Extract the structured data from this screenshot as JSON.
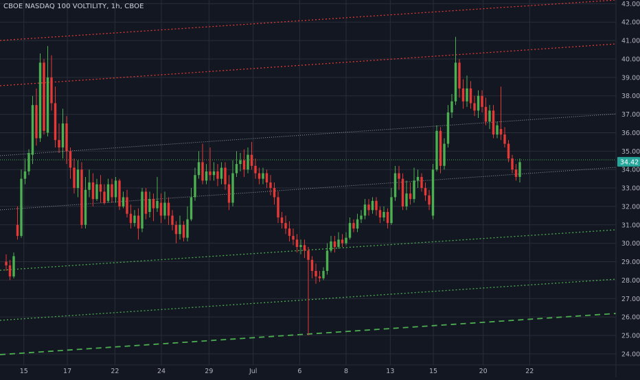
{
  "chart_data": {
    "type": "candlestick",
    "title": "CBOE NASDAQ 100 VOLTILITY, 1h, CBOE",
    "ylim": [
      23.4,
      43.2
    ],
    "y_ticks": [
      "43.00",
      "42.00",
      "41.00",
      "40.00",
      "39.00",
      "38.00",
      "37.00",
      "36.00",
      "35.00",
      "34.00",
      "33.00",
      "32.00",
      "31.00",
      "30.00",
      "29.00",
      "28.00",
      "27.00",
      "26.00",
      "25.00",
      "24.00"
    ],
    "x_ticks": [
      "15",
      "17",
      "22",
      "24",
      "29",
      "Jul",
      "6",
      "8",
      "13",
      "15",
      "20",
      "22"
    ],
    "x_tick_positions": [
      0.78,
      2.7,
      4.8,
      6.85,
      8.95,
      10.9,
      12.95,
      15.0,
      16.95,
      18.85,
      21.05,
      23.1
    ],
    "grid": true,
    "last_price": {
      "label": "34.42",
      "value": 34.42,
      "color": "#26a69a"
    },
    "colors": {
      "up": "#4caf50",
      "down": "#e53935",
      "background": "#131722",
      "grid": "#2a2e39",
      "axis_text": "#b2b5be"
    },
    "candles": [
      [
        29.0,
        28.8,
        29.4,
        28.5
      ],
      [
        28.8,
        28.2,
        29.1,
        28.0
      ],
      [
        28.2,
        29.3,
        29.5,
        28.1
      ],
      [
        31.0,
        30.4,
        32.0,
        30.2
      ],
      [
        30.4,
        33.5,
        34.0,
        30.3
      ],
      [
        33.5,
        33.9,
        34.6,
        33.2
      ],
      [
        33.9,
        34.9,
        35.1,
        33.7
      ],
      [
        34.8,
        37.5,
        38.0,
        34.3
      ],
      [
        37.5,
        35.7,
        38.4,
        35.3
      ],
      [
        35.7,
        39.8,
        40.3,
        35.5
      ],
      [
        39.8,
        36.1,
        40.0,
        35.9
      ],
      [
        36.0,
        39.0,
        40.7,
        35.8
      ],
      [
        39.0,
        37.6,
        40.2,
        37.2
      ],
      [
        37.6,
        35.6,
        38.5,
        35.2
      ],
      [
        35.6,
        35.2,
        36.5,
        34.9
      ],
      [
        35.2,
        36.5,
        37.3,
        34.6
      ],
      [
        36.5,
        35.0,
        36.9,
        34.3
      ],
      [
        35.0,
        34.1,
        35.2,
        33.5
      ],
      [
        34.1,
        33.0,
        34.6,
        32.7
      ],
      [
        33.0,
        34.0,
        34.5,
        32.5
      ],
      [
        34.0,
        31.0,
        34.4,
        30.8
      ],
      [
        31.0,
        32.9,
        33.6,
        30.8
      ],
      [
        32.9,
        33.3,
        34.0,
        32.5
      ],
      [
        33.3,
        32.4,
        33.8,
        32.0
      ],
      [
        32.4,
        33.2,
        33.5,
        32.3
      ],
      [
        33.2,
        32.8,
        33.7,
        32.2
      ],
      [
        32.8,
        32.2,
        33.2,
        32.1
      ],
      [
        32.3,
        33.2,
        33.5,
        32.2
      ],
      [
        33.2,
        32.5,
        33.5,
        32.2
      ],
      [
        32.5,
        33.4,
        33.6,
        32.2
      ],
      [
        33.4,
        32.0,
        33.5,
        31.8
      ],
      [
        32.0,
        32.5,
        32.8,
        31.9
      ],
      [
        32.5,
        31.6,
        32.9,
        31.4
      ],
      [
        31.6,
        31.1,
        32.1,
        30.8
      ],
      [
        31.1,
        31.5,
        31.8,
        30.9
      ],
      [
        31.5,
        30.8,
        31.9,
        30.2
      ],
      [
        30.8,
        32.8,
        33.0,
        30.6
      ],
      [
        32.8,
        31.6,
        33.0,
        31.3
      ],
      [
        31.7,
        32.4,
        32.8,
        31.4
      ],
      [
        32.4,
        31.9,
        32.7,
        31.2
      ],
      [
        31.9,
        32.3,
        33.6,
        31.7
      ],
      [
        32.2,
        31.5,
        32.7,
        31.1
      ],
      [
        31.5,
        32.2,
        32.8,
        31.3
      ],
      [
        32.2,
        31.5,
        32.5,
        31.0
      ],
      [
        31.5,
        31.0,
        31.8,
        30.7
      ],
      [
        31.0,
        30.5,
        31.2,
        30.0
      ],
      [
        30.5,
        31.0,
        31.5,
        30.2
      ],
      [
        31.0,
        30.3,
        31.2,
        30.1
      ],
      [
        30.3,
        31.3,
        32.0,
        30.1
      ],
      [
        31.3,
        32.5,
        33.0,
        31.2
      ],
      [
        32.5,
        33.7,
        34.1,
        32.3
      ],
      [
        33.7,
        34.4,
        35.0,
        33.5
      ],
      [
        34.4,
        33.4,
        35.4,
        33.2
      ],
      [
        33.4,
        33.9,
        34.3,
        33.2
      ],
      [
        33.9,
        33.7,
        35.2,
        33.4
      ],
      [
        33.7,
        33.9,
        34.4,
        33.4
      ],
      [
        33.9,
        33.5,
        34.3,
        33.1
      ],
      [
        33.5,
        34.1,
        34.4,
        33.2
      ],
      [
        34.1,
        33.2,
        34.4,
        32.9
      ],
      [
        33.2,
        32.2,
        33.7,
        31.8
      ],
      [
        32.2,
        33.8,
        34.5,
        32.0
      ],
      [
        33.8,
        34.3,
        35.0,
        33.6
      ],
      [
        34.3,
        34.5,
        34.9,
        33.9
      ],
      [
        34.5,
        34.0,
        35.1,
        33.6
      ],
      [
        34.0,
        34.8,
        35.2,
        33.8
      ],
      [
        34.8,
        34.2,
        35.5,
        34.0
      ],
      [
        34.2,
        33.8,
        34.6,
        33.5
      ],
      [
        33.8,
        33.5,
        34.1,
        33.2
      ],
      [
        33.5,
        33.8,
        34.1,
        33.2
      ],
      [
        33.8,
        33.3,
        34.0,
        33.0
      ],
      [
        33.3,
        33.0,
        33.7,
        32.6
      ],
      [
        33.0,
        32.5,
        33.3,
        32.1
      ],
      [
        32.5,
        31.4,
        32.8,
        31.1
      ],
      [
        31.4,
        31.1,
        31.7,
        30.8
      ],
      [
        31.1,
        30.8,
        31.5,
        30.5
      ],
      [
        30.8,
        30.4,
        31.2,
        30.1
      ],
      [
        30.4,
        30.2,
        30.8,
        29.9
      ],
      [
        30.2,
        29.8,
        30.5,
        29.5
      ],
      [
        29.8,
        29.9,
        30.2,
        29.4
      ],
      [
        29.9,
        29.6,
        30.2,
        29.2
      ],
      [
        29.6,
        29.1,
        29.8,
        25.0
      ],
      [
        29.1,
        28.5,
        29.3,
        28.1
      ],
      [
        28.5,
        28.2,
        28.9,
        27.8
      ],
      [
        28.2,
        28.1,
        28.5,
        27.9
      ],
      [
        28.1,
        28.5,
        28.7,
        28.0
      ],
      [
        28.5,
        29.6,
        30.0,
        28.3
      ],
      [
        29.6,
        30.1,
        30.4,
        29.5
      ],
      [
        30.1,
        29.8,
        30.4,
        29.5
      ],
      [
        29.8,
        30.2,
        30.6,
        29.7
      ],
      [
        30.2,
        30.0,
        30.5,
        29.8
      ],
      [
        30.0,
        30.3,
        30.6,
        29.9
      ],
      [
        30.3,
        31.1,
        31.4,
        30.2
      ],
      [
        31.1,
        30.8,
        31.3,
        30.6
      ],
      [
        30.8,
        31.3,
        31.6,
        30.6
      ],
      [
        31.3,
        31.5,
        31.8,
        31.1
      ],
      [
        31.5,
        32.1,
        32.4,
        31.3
      ],
      [
        32.1,
        31.8,
        32.4,
        31.5
      ],
      [
        31.8,
        32.3,
        32.5,
        31.6
      ],
      [
        32.3,
        31.8,
        32.5,
        31.5
      ],
      [
        31.8,
        31.4,
        32.0,
        31.1
      ],
      [
        31.4,
        31.7,
        32.0,
        31.2
      ],
      [
        31.7,
        31.1,
        31.9,
        30.8
      ],
      [
        31.1,
        32.5,
        33.0,
        31.0
      ],
      [
        32.5,
        33.8,
        34.2,
        32.3
      ],
      [
        33.8,
        33.5,
        34.2,
        32.9
      ],
      [
        33.5,
        32.0,
        33.8,
        31.8
      ],
      [
        32.0,
        32.7,
        33.4,
        31.8
      ],
      [
        32.7,
        32.4,
        33.3,
        32.1
      ],
      [
        32.4,
        33.4,
        34.1,
        32.2
      ],
      [
        33.4,
        33.6,
        34.0,
        33.0
      ],
      [
        33.6,
        33.0,
        33.8,
        32.8
      ],
      [
        33.0,
        32.6,
        33.3,
        32.3
      ],
      [
        32.6,
        32.1,
        32.9,
        31.8
      ],
      [
        31.5,
        34.0,
        34.3,
        31.3
      ],
      [
        34.0,
        36.1,
        36.4,
        33.9
      ],
      [
        36.1,
        34.2,
        36.3,
        33.8
      ],
      [
        34.2,
        35.4,
        35.7,
        34.0
      ],
      [
        35.4,
        37.1,
        37.5,
        35.2
      ],
      [
        37.1,
        37.7,
        38.1,
        36.8
      ],
      [
        37.7,
        39.8,
        41.2,
        37.5
      ],
      [
        39.8,
        38.4,
        40.0,
        37.9
      ],
      [
        38.4,
        37.7,
        38.9,
        37.3
      ],
      [
        37.7,
        38.4,
        39.1,
        37.4
      ],
      [
        38.4,
        37.6,
        38.8,
        37.3
      ],
      [
        37.6,
        37.2,
        38.0,
        36.9
      ],
      [
        37.2,
        38.0,
        38.3,
        36.8
      ],
      [
        38.0,
        37.4,
        38.3,
        37.1
      ],
      [
        37.4,
        36.6,
        37.9,
        36.4
      ],
      [
        36.6,
        37.2,
        37.5,
        36.2
      ],
      [
        37.2,
        35.9,
        37.5,
        35.7
      ],
      [
        35.9,
        36.4,
        36.6,
        35.7
      ],
      [
        36.2,
        35.9,
        38.5,
        35.6
      ],
      [
        35.9,
        35.4,
        36.3,
        35.2
      ],
      [
        35.4,
        34.6,
        35.6,
        34.4
      ],
      [
        34.6,
        34.0,
        34.8,
        33.8
      ],
      [
        34.0,
        33.6,
        34.3,
        33.4
      ],
      [
        33.6,
        34.4,
        34.6,
        33.3
      ]
    ]
  }
}
